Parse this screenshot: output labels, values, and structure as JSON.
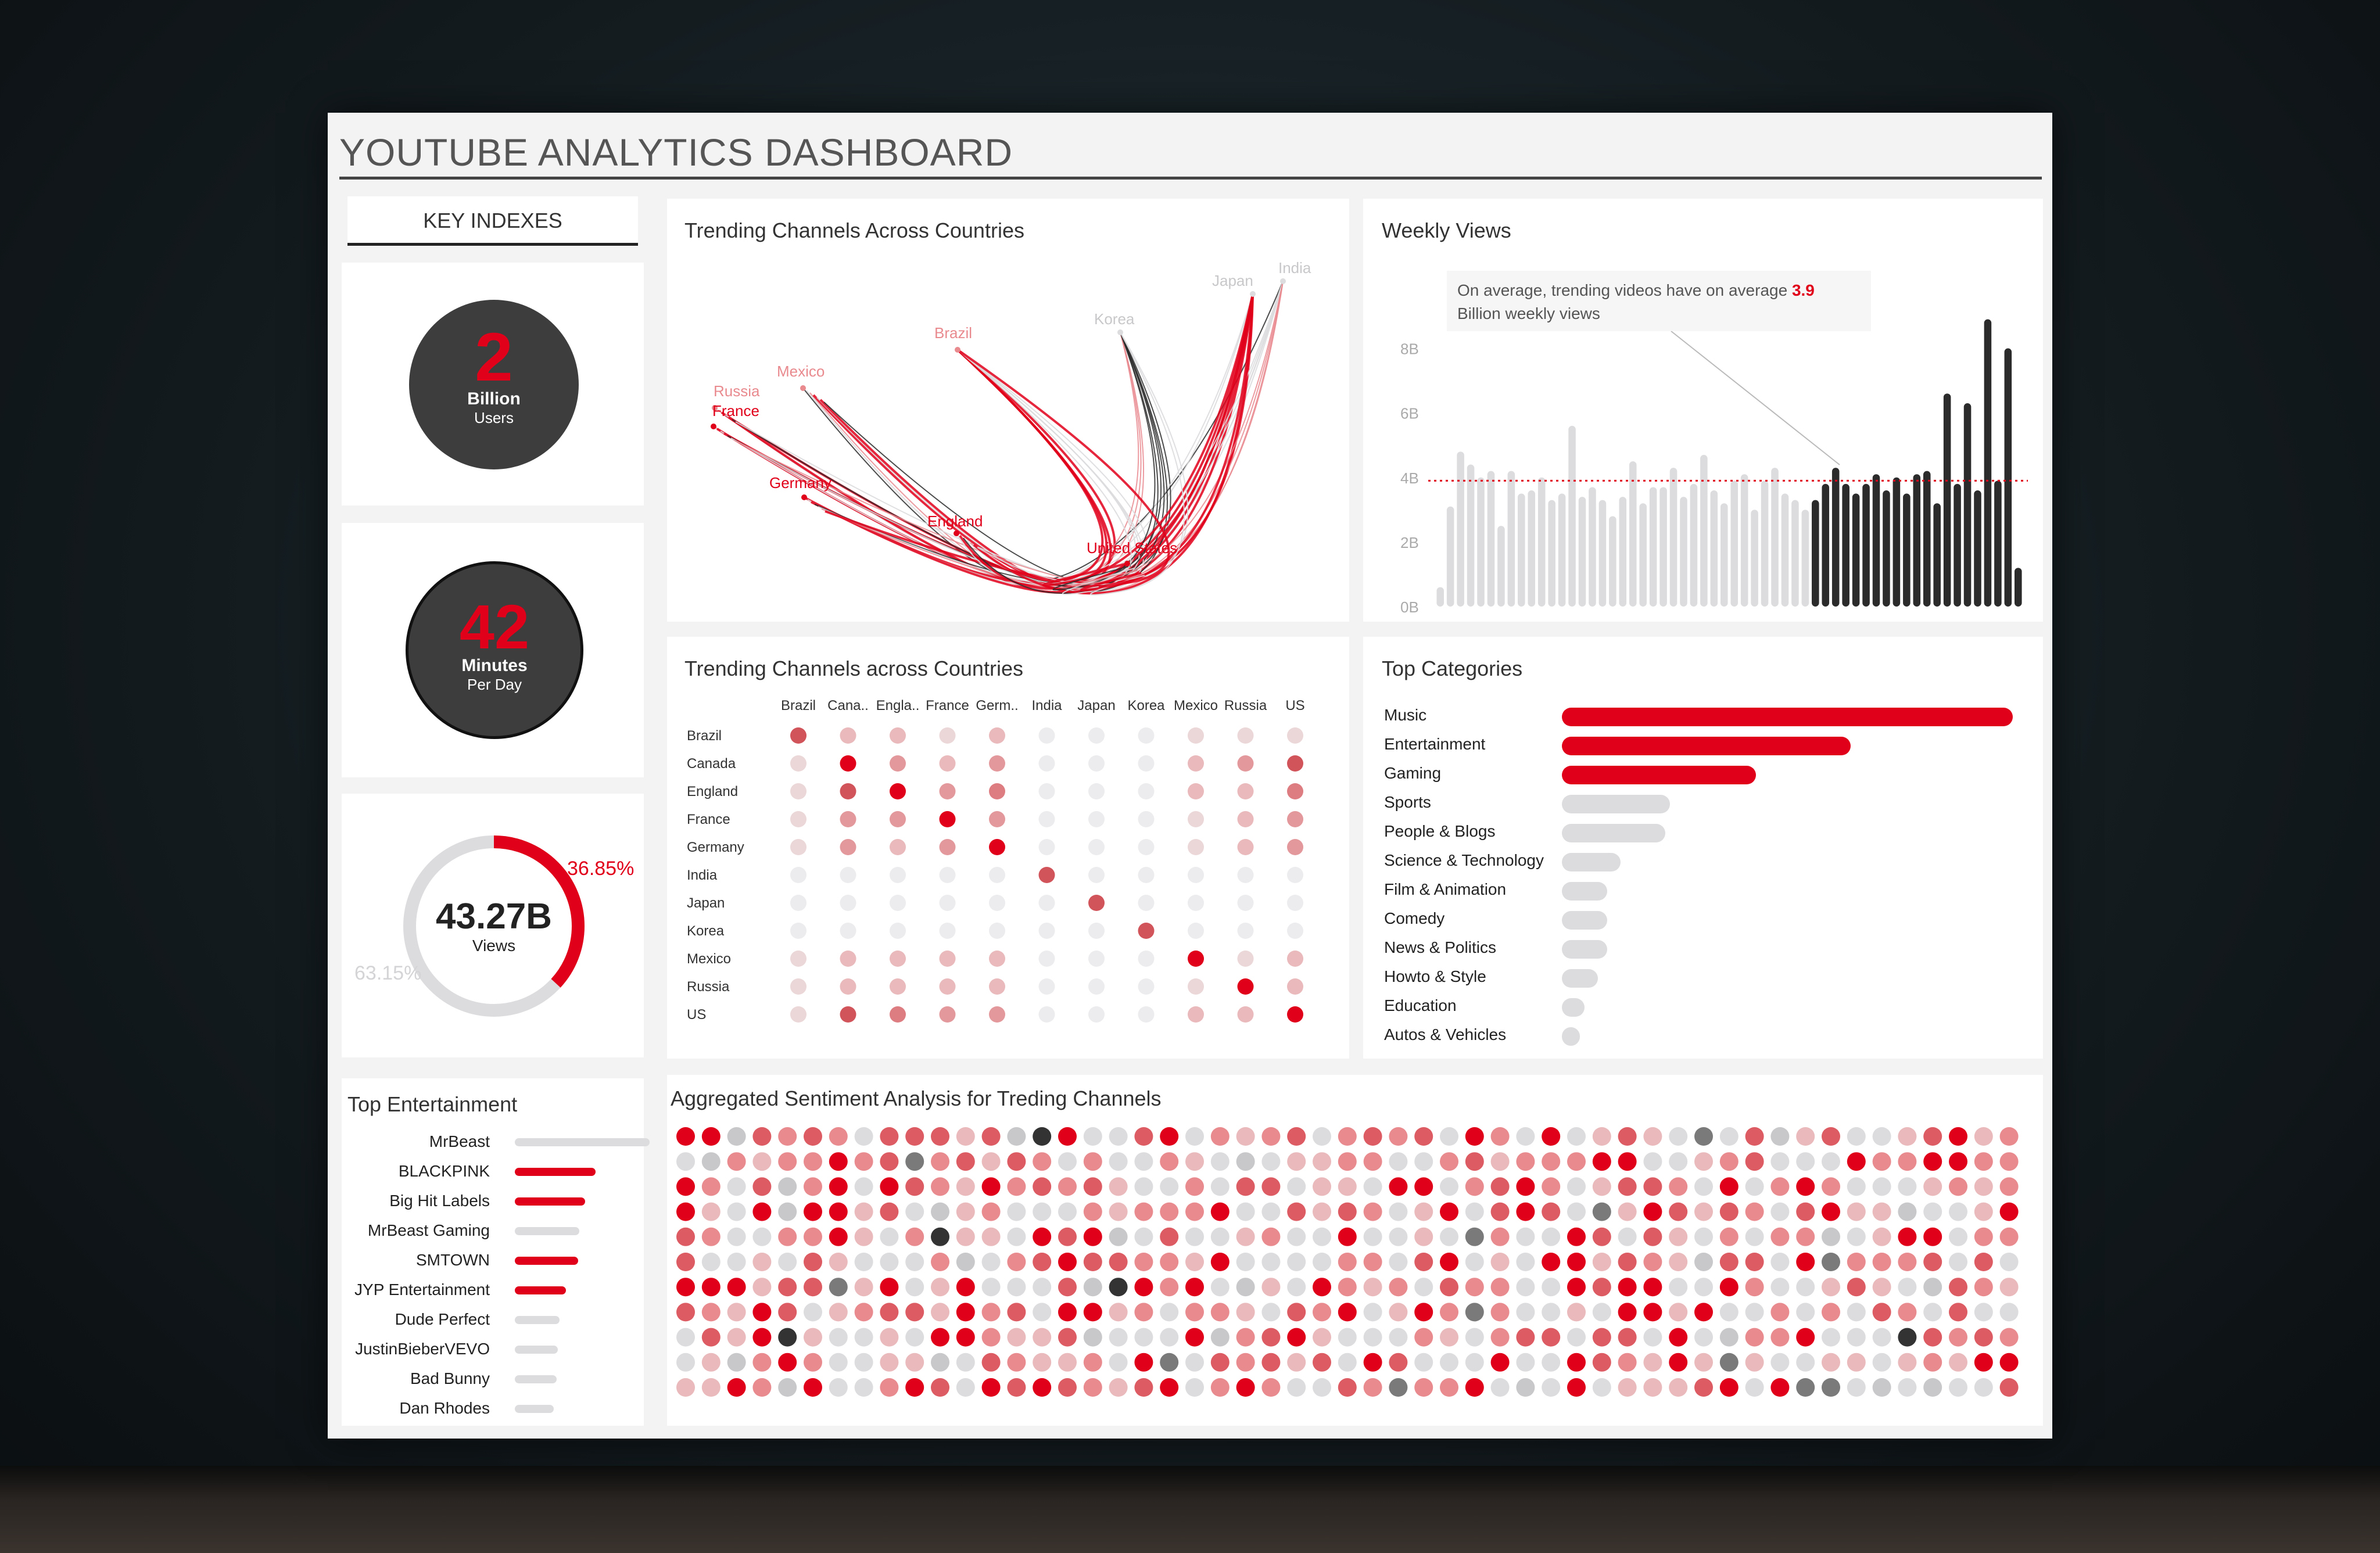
{
  "dashboard": {
    "title": "YOUTUBE ANALYTICS DASHBOARD"
  },
  "key_indexes": {
    "header": "KEY INDEXES",
    "users": {
      "value": "2",
      "unit": "Billion",
      "sub": "Users"
    },
    "minutes": {
      "value": "42",
      "unit": "Minutes",
      "sub": "Per Day"
    },
    "views": {
      "value": "43.27B",
      "label": "Views",
      "pct_red": "36.85%",
      "pct_gray": "63.15%",
      "red_fraction": 0.3685
    }
  },
  "colors": {
    "red": "#e1001a",
    "dark": "#2b2b2b",
    "gray": "#dcdcde",
    "pink": "#e98a8f",
    "lightpink": "#f2c4c6"
  },
  "top_entertainment": {
    "title": "Top Entertainment",
    "items": [
      {
        "label": "MrBeast",
        "value": 1.0,
        "highlight": false
      },
      {
        "label": "BLACKPINK",
        "value": 0.6,
        "highlight": true
      },
      {
        "label": "Big Hit Labels",
        "value": 0.52,
        "highlight": true
      },
      {
        "label": "MrBeast Gaming",
        "value": 0.48,
        "highlight": false
      },
      {
        "label": "SMTOWN",
        "value": 0.47,
        "highlight": true
      },
      {
        "label": "JYP Entertainment",
        "value": 0.38,
        "highlight": true
      },
      {
        "label": "Dude Perfect",
        "value": 0.33,
        "highlight": false
      },
      {
        "label": "JustinBieberVEVO",
        "value": 0.32,
        "highlight": false
      },
      {
        "label": "Bad Bunny",
        "value": 0.31,
        "highlight": false
      },
      {
        "label": "Dan Rhodes",
        "value": 0.29,
        "highlight": false
      }
    ]
  },
  "chart_data": [
    {
      "type": "line",
      "title": "Trending Channels Across Countries",
      "description_type": "flow",
      "nodes": [
        {
          "label": "India",
          "color": "#dcdcde"
        },
        {
          "label": "Japan",
          "color": "#dcdcde"
        },
        {
          "label": "Korea",
          "color": "#dcdcde"
        },
        {
          "label": "Brazil",
          "color": "#e98a8f"
        },
        {
          "label": "Mexico",
          "color": "#e98a8f"
        },
        {
          "label": "Russia",
          "color": "#e98a8f"
        },
        {
          "label": "France",
          "color": "#e1001a"
        },
        {
          "label": "Germany",
          "color": "#e1001a"
        },
        {
          "label": "England",
          "color": "#e1001a"
        },
        {
          "label": "United States",
          "color": "#e1001a"
        }
      ]
    },
    {
      "type": "bar",
      "title": "Weekly Views",
      "annotation_pre": "On average, trending videos have on average ",
      "annotation_value": "3.9",
      "annotation_post": "Billion weekly views",
      "average": 3.9,
      "ylim": [
        0,
        9
      ],
      "yticks": [
        "0B",
        "2B",
        "4B",
        "6B",
        "8B"
      ],
      "values": [
        0.6,
        3.1,
        4.8,
        4.4,
        4.0,
        4.2,
        2.5,
        4.2,
        3.5,
        3.6,
        4.0,
        3.3,
        3.5,
        5.6,
        3.4,
        3.7,
        3.3,
        2.8,
        3.4,
        4.5,
        3.2,
        3.7,
        3.7,
        4.3,
        3.4,
        3.8,
        4.7,
        3.6,
        3.2,
        3.9,
        4.1,
        3.0,
        3.9,
        4.3,
        3.5,
        3.3,
        3.0,
        3.3,
        3.8,
        4.3,
        3.8,
        3.5,
        3.8,
        4.1,
        3.6,
        4.0,
        3.5,
        4.1,
        4.2,
        3.2,
        6.6,
        3.8,
        6.3,
        3.6,
        8.9,
        3.9,
        8.0,
        1.2
      ],
      "dark_from": 37
    },
    {
      "type": "heatmap",
      "title": "Trending Channels across Countries",
      "columns": [
        "Brazil",
        "Cana..",
        "Engla..",
        "France",
        "Germ..",
        "India",
        "Japan",
        "Korea",
        "Mexico",
        "Russia",
        "US"
      ],
      "rows": [
        "Brazil",
        "Canada",
        "England",
        "France",
        "Germany",
        "India",
        "Japan",
        "Korea",
        "Mexico",
        "Russia",
        "US"
      ],
      "values": [
        [
          5,
          2,
          2,
          1,
          2,
          0,
          0,
          0,
          1,
          1,
          1
        ],
        [
          1,
          6,
          3,
          2,
          3,
          0,
          0,
          0,
          2,
          3,
          5
        ],
        [
          1,
          5,
          6,
          3,
          4,
          0,
          0,
          0,
          2,
          2,
          4
        ],
        [
          1,
          3,
          3,
          6,
          3,
          0,
          0,
          0,
          1,
          2,
          3
        ],
        [
          1,
          3,
          2,
          3,
          6,
          0,
          0,
          0,
          1,
          2,
          3
        ],
        [
          0,
          0,
          0,
          0,
          0,
          5,
          0,
          0,
          0,
          0,
          0
        ],
        [
          0,
          0,
          0,
          0,
          0,
          0,
          5,
          0,
          0,
          0,
          0
        ],
        [
          0,
          0,
          0,
          0,
          0,
          0,
          0,
          5,
          0,
          0,
          0
        ],
        [
          1,
          2,
          2,
          2,
          2,
          0,
          0,
          0,
          6,
          1,
          2
        ],
        [
          1,
          2,
          2,
          2,
          2,
          0,
          0,
          0,
          1,
          6,
          2
        ],
        [
          1,
          5,
          4,
          3,
          3,
          0,
          0,
          0,
          2,
          2,
          6
        ]
      ]
    },
    {
      "type": "bar",
      "title": "Top Categories",
      "categories": [
        "Music",
        "Entertainment",
        "Gaming",
        "Sports",
        "People & Blogs",
        "Science & Technology",
        "Film & Animation",
        "Comedy",
        "News & Politics",
        "Howto & Style",
        "Education",
        "Autos & Vehicles"
      ],
      "values": [
        100,
        64,
        43,
        24,
        23,
        13,
        10,
        10,
        10,
        8,
        5,
        4
      ],
      "highlight": [
        true,
        true,
        true,
        false,
        false,
        false,
        false,
        false,
        false,
        false,
        false,
        false
      ]
    },
    {
      "type": "scatter",
      "title": "Aggregated Sentiment Analysis for Treding Channels",
      "grid_rows": 11,
      "grid_cols": 53,
      "seed": 42
    }
  ]
}
